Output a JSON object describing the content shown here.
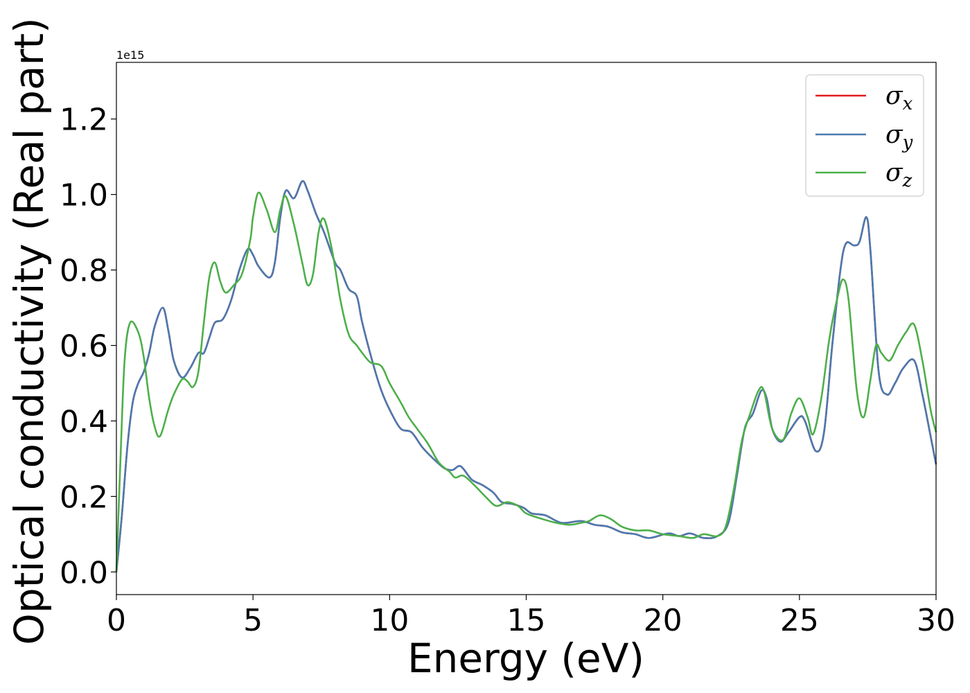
{
  "chart_data": {
    "type": "line",
    "title": "",
    "xlabel": "Energy (eV)",
    "ylabel": "Optical conductivity (Real part)",
    "y_offset_label": "1e15",
    "xlim": [
      0,
      30
    ],
    "ylim": [
      -0.06,
      1.35
    ],
    "x_ticks": [
      0,
      5,
      10,
      15,
      20,
      25,
      30
    ],
    "x_tick_labels": [
      "0",
      "5",
      "10",
      "15",
      "20",
      "25",
      "30"
    ],
    "y_ticks": [
      0.0,
      0.2,
      0.4,
      0.6,
      0.8,
      1.0,
      1.2
    ],
    "y_tick_labels": [
      "0.0",
      "0.2",
      "0.4",
      "0.6",
      "0.8",
      "1.0",
      "1.2"
    ],
    "grid": false,
    "legend_position": "top-right",
    "series": [
      {
        "name": "x",
        "color": "#e41a1c",
        "points": [
          [
            0,
            0
          ],
          [
            0.2,
            0.15
          ],
          [
            0.4,
            0.33
          ],
          [
            0.6,
            0.45
          ],
          [
            0.8,
            0.5
          ],
          [
            1.0,
            0.53
          ],
          [
            1.2,
            0.58
          ],
          [
            1.4,
            0.65
          ],
          [
            1.7,
            0.7
          ],
          [
            1.9,
            0.64
          ],
          [
            2.1,
            0.56
          ],
          [
            2.4,
            0.515
          ],
          [
            2.7,
            0.54
          ],
          [
            3.0,
            0.58
          ],
          [
            3.2,
            0.58
          ],
          [
            3.4,
            0.62
          ],
          [
            3.6,
            0.66
          ],
          [
            3.9,
            0.67
          ],
          [
            4.2,
            0.72
          ],
          [
            4.5,
            0.8
          ],
          [
            4.8,
            0.855
          ],
          [
            5.0,
            0.84
          ],
          [
            5.2,
            0.81
          ],
          [
            5.6,
            0.78
          ],
          [
            5.8,
            0.82
          ],
          [
            6.0,
            0.94
          ],
          [
            6.2,
            1.01
          ],
          [
            6.5,
            0.99
          ],
          [
            6.8,
            1.035
          ],
          [
            7.0,
            1.01
          ],
          [
            7.3,
            0.95
          ],
          [
            7.6,
            0.9
          ],
          [
            8.0,
            0.82
          ],
          [
            8.2,
            0.8
          ],
          [
            8.5,
            0.75
          ],
          [
            8.8,
            0.73
          ],
          [
            9.0,
            0.66
          ],
          [
            9.4,
            0.55
          ],
          [
            9.7,
            0.48
          ],
          [
            10.0,
            0.43
          ],
          [
            10.4,
            0.38
          ],
          [
            10.8,
            0.37
          ],
          [
            11.2,
            0.33
          ],
          [
            11.6,
            0.3
          ],
          [
            12.0,
            0.275
          ],
          [
            12.3,
            0.27
          ],
          [
            12.6,
            0.28
          ],
          [
            13.0,
            0.245
          ],
          [
            13.4,
            0.23
          ],
          [
            13.8,
            0.21
          ],
          [
            14.1,
            0.185
          ],
          [
            14.5,
            0.18
          ],
          [
            14.9,
            0.17
          ],
          [
            15.2,
            0.155
          ],
          [
            15.7,
            0.15
          ],
          [
            16.3,
            0.13
          ],
          [
            17.0,
            0.135
          ],
          [
            17.5,
            0.125
          ],
          [
            18.0,
            0.12
          ],
          [
            18.5,
            0.105
          ],
          [
            19.0,
            0.1
          ],
          [
            19.5,
            0.09
          ],
          [
            20.2,
            0.102
          ],
          [
            20.6,
            0.095
          ],
          [
            21.0,
            0.102
          ],
          [
            21.5,
            0.09
          ],
          [
            22.0,
            0.095
          ],
          [
            22.4,
            0.13
          ],
          [
            22.7,
            0.25
          ],
          [
            23.0,
            0.38
          ],
          [
            23.3,
            0.42
          ],
          [
            23.6,
            0.48
          ],
          [
            23.8,
            0.46
          ],
          [
            24.0,
            0.38
          ],
          [
            24.3,
            0.345
          ],
          [
            24.6,
            0.37
          ],
          [
            25.0,
            0.41
          ],
          [
            25.2,
            0.4
          ],
          [
            25.6,
            0.32
          ],
          [
            25.9,
            0.37
          ],
          [
            26.2,
            0.6
          ],
          [
            26.5,
            0.8
          ],
          [
            26.7,
            0.87
          ],
          [
            27.0,
            0.865
          ],
          [
            27.2,
            0.875
          ],
          [
            27.45,
            0.94
          ],
          [
            27.6,
            0.85
          ],
          [
            27.9,
            0.53
          ],
          [
            28.2,
            0.47
          ],
          [
            28.5,
            0.5
          ],
          [
            28.8,
            0.54
          ],
          [
            29.2,
            0.56
          ],
          [
            29.5,
            0.47
          ],
          [
            29.8,
            0.36
          ],
          [
            30.0,
            0.285
          ]
        ]
      },
      {
        "name": "y",
        "color": "#4a7ab0",
        "points": [
          [
            0,
            0
          ],
          [
            0.2,
            0.15
          ],
          [
            0.4,
            0.33
          ],
          [
            0.6,
            0.45
          ],
          [
            0.8,
            0.5
          ],
          [
            1.0,
            0.53
          ],
          [
            1.2,
            0.58
          ],
          [
            1.4,
            0.65
          ],
          [
            1.7,
            0.7
          ],
          [
            1.9,
            0.64
          ],
          [
            2.1,
            0.56
          ],
          [
            2.4,
            0.515
          ],
          [
            2.7,
            0.54
          ],
          [
            3.0,
            0.58
          ],
          [
            3.2,
            0.58
          ],
          [
            3.4,
            0.62
          ],
          [
            3.6,
            0.66
          ],
          [
            3.9,
            0.67
          ],
          [
            4.2,
            0.72
          ],
          [
            4.5,
            0.8
          ],
          [
            4.8,
            0.855
          ],
          [
            5.0,
            0.84
          ],
          [
            5.2,
            0.81
          ],
          [
            5.6,
            0.78
          ],
          [
            5.8,
            0.82
          ],
          [
            6.0,
            0.94
          ],
          [
            6.2,
            1.01
          ],
          [
            6.5,
            0.99
          ],
          [
            6.8,
            1.035
          ],
          [
            7.0,
            1.01
          ],
          [
            7.3,
            0.95
          ],
          [
            7.6,
            0.9
          ],
          [
            8.0,
            0.82
          ],
          [
            8.2,
            0.8
          ],
          [
            8.5,
            0.75
          ],
          [
            8.8,
            0.73
          ],
          [
            9.0,
            0.66
          ],
          [
            9.4,
            0.55
          ],
          [
            9.7,
            0.48
          ],
          [
            10.0,
            0.43
          ],
          [
            10.4,
            0.38
          ],
          [
            10.8,
            0.37
          ],
          [
            11.2,
            0.33
          ],
          [
            11.6,
            0.3
          ],
          [
            12.0,
            0.275
          ],
          [
            12.3,
            0.27
          ],
          [
            12.6,
            0.28
          ],
          [
            13.0,
            0.245
          ],
          [
            13.4,
            0.23
          ],
          [
            13.8,
            0.21
          ],
          [
            14.1,
            0.185
          ],
          [
            14.5,
            0.18
          ],
          [
            14.9,
            0.17
          ],
          [
            15.2,
            0.155
          ],
          [
            15.7,
            0.15
          ],
          [
            16.3,
            0.13
          ],
          [
            17.0,
            0.135
          ],
          [
            17.5,
            0.125
          ],
          [
            18.0,
            0.12
          ],
          [
            18.5,
            0.105
          ],
          [
            19.0,
            0.1
          ],
          [
            19.5,
            0.09
          ],
          [
            20.2,
            0.102
          ],
          [
            20.6,
            0.095
          ],
          [
            21.0,
            0.102
          ],
          [
            21.5,
            0.09
          ],
          [
            22.0,
            0.095
          ],
          [
            22.4,
            0.13
          ],
          [
            22.7,
            0.25
          ],
          [
            23.0,
            0.38
          ],
          [
            23.3,
            0.42
          ],
          [
            23.6,
            0.48
          ],
          [
            23.8,
            0.46
          ],
          [
            24.0,
            0.38
          ],
          [
            24.3,
            0.345
          ],
          [
            24.6,
            0.37
          ],
          [
            25.0,
            0.41
          ],
          [
            25.2,
            0.4
          ],
          [
            25.6,
            0.32
          ],
          [
            25.9,
            0.37
          ],
          [
            26.2,
            0.6
          ],
          [
            26.5,
            0.8
          ],
          [
            26.7,
            0.87
          ],
          [
            27.0,
            0.865
          ],
          [
            27.2,
            0.875
          ],
          [
            27.45,
            0.94
          ],
          [
            27.6,
            0.85
          ],
          [
            27.9,
            0.53
          ],
          [
            28.2,
            0.47
          ],
          [
            28.5,
            0.5
          ],
          [
            28.8,
            0.54
          ],
          [
            29.2,
            0.56
          ],
          [
            29.5,
            0.47
          ],
          [
            29.8,
            0.36
          ],
          [
            30.0,
            0.285
          ]
        ]
      },
      {
        "name": "z",
        "color": "#4daf4a",
        "points": [
          [
            0,
            0
          ],
          [
            0.15,
            0.3
          ],
          [
            0.3,
            0.56
          ],
          [
            0.5,
            0.66
          ],
          [
            0.8,
            0.635
          ],
          [
            1.0,
            0.57
          ],
          [
            1.2,
            0.46
          ],
          [
            1.4,
            0.385
          ],
          [
            1.6,
            0.36
          ],
          [
            1.9,
            0.43
          ],
          [
            2.1,
            0.47
          ],
          [
            2.4,
            0.51
          ],
          [
            2.6,
            0.505
          ],
          [
            2.8,
            0.49
          ],
          [
            3.0,
            0.53
          ],
          [
            3.2,
            0.66
          ],
          [
            3.4,
            0.78
          ],
          [
            3.6,
            0.82
          ],
          [
            3.8,
            0.77
          ],
          [
            4.0,
            0.74
          ],
          [
            4.3,
            0.76
          ],
          [
            4.6,
            0.79
          ],
          [
            4.9,
            0.88
          ],
          [
            5.0,
            0.94
          ],
          [
            5.2,
            1.005
          ],
          [
            5.5,
            0.96
          ],
          [
            5.8,
            0.9
          ],
          [
            6.0,
            0.96
          ],
          [
            6.2,
            0.995
          ],
          [
            6.5,
            0.92
          ],
          [
            6.8,
            0.82
          ],
          [
            7.0,
            0.76
          ],
          [
            7.2,
            0.79
          ],
          [
            7.4,
            0.9
          ],
          [
            7.6,
            0.935
          ],
          [
            7.9,
            0.85
          ],
          [
            8.2,
            0.72
          ],
          [
            8.5,
            0.63
          ],
          [
            8.8,
            0.6
          ],
          [
            9.0,
            0.58
          ],
          [
            9.3,
            0.555
          ],
          [
            9.7,
            0.545
          ],
          [
            10.0,
            0.5
          ],
          [
            10.4,
            0.45
          ],
          [
            10.7,
            0.41
          ],
          [
            11.0,
            0.38
          ],
          [
            11.4,
            0.34
          ],
          [
            11.8,
            0.29
          ],
          [
            12.2,
            0.265
          ],
          [
            12.4,
            0.25
          ],
          [
            12.7,
            0.255
          ],
          [
            13.1,
            0.23
          ],
          [
            13.5,
            0.2
          ],
          [
            13.9,
            0.175
          ],
          [
            14.3,
            0.185
          ],
          [
            14.7,
            0.175
          ],
          [
            15.0,
            0.155
          ],
          [
            15.6,
            0.14
          ],
          [
            16.1,
            0.13
          ],
          [
            16.6,
            0.125
          ],
          [
            17.0,
            0.13
          ],
          [
            17.3,
            0.135
          ],
          [
            17.7,
            0.15
          ],
          [
            18.1,
            0.14
          ],
          [
            18.5,
            0.12
          ],
          [
            19.0,
            0.11
          ],
          [
            19.5,
            0.11
          ],
          [
            20.0,
            0.1
          ],
          [
            20.6,
            0.095
          ],
          [
            21.1,
            0.09
          ],
          [
            21.5,
            0.1
          ],
          [
            22.0,
            0.095
          ],
          [
            22.3,
            0.12
          ],
          [
            22.6,
            0.22
          ],
          [
            22.9,
            0.35
          ],
          [
            23.2,
            0.42
          ],
          [
            23.5,
            0.48
          ],
          [
            23.7,
            0.48
          ],
          [
            24.0,
            0.38
          ],
          [
            24.4,
            0.35
          ],
          [
            24.7,
            0.42
          ],
          [
            25.0,
            0.46
          ],
          [
            25.3,
            0.41
          ],
          [
            25.5,
            0.365
          ],
          [
            25.8,
            0.46
          ],
          [
            26.1,
            0.62
          ],
          [
            26.4,
            0.73
          ],
          [
            26.6,
            0.775
          ],
          [
            26.8,
            0.72
          ],
          [
            27.1,
            0.48
          ],
          [
            27.35,
            0.41
          ],
          [
            27.6,
            0.51
          ],
          [
            27.8,
            0.6
          ],
          [
            28.0,
            0.58
          ],
          [
            28.3,
            0.56
          ],
          [
            28.6,
            0.6
          ],
          [
            28.9,
            0.635
          ],
          [
            29.2,
            0.655
          ],
          [
            29.5,
            0.56
          ],
          [
            29.8,
            0.43
          ],
          [
            30.0,
            0.37
          ]
        ]
      }
    ]
  },
  "legend": {
    "symbol": "σ",
    "entries": [
      "x",
      "y",
      "z"
    ]
  }
}
